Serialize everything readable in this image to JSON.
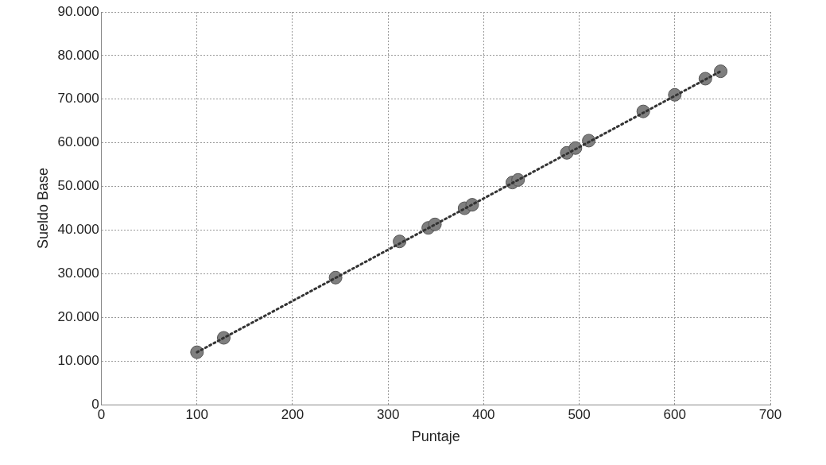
{
  "chart_data": {
    "type": "scatter",
    "xlabel": "Puntaje",
    "ylabel": "Sueldo Base",
    "xlim": [
      0,
      700
    ],
    "xticks": [
      0,
      100,
      200,
      300,
      400,
      500,
      600,
      700
    ],
    "ylim": [
      0,
      90000
    ],
    "yticks": [
      0,
      {
        "value": 10000,
        "label": "10.000"
      },
      {
        "value": 20000,
        "label": "20.000"
      },
      {
        "value": 30000,
        "label": "30.000"
      },
      {
        "value": 40000,
        "label": "40.000"
      },
      {
        "value": 50000,
        "label": "50.000"
      },
      {
        "value": 60000,
        "label": "60.000"
      },
      {
        "value": 70000,
        "label": "70.000"
      },
      {
        "value": 80000,
        "label": "80.000"
      },
      {
        "value": 90000,
        "label": "90.000"
      }
    ],
    "grid": true,
    "legend": false,
    "marker": "circle",
    "series": [
      {
        "color": "#7f7f7f",
        "x": [
          100,
          128,
          245,
          312,
          342,
          349,
          380,
          388,
          430,
          436,
          487,
          496,
          510,
          567,
          600,
          632,
          648
        ],
        "values": [
          12000,
          15300,
          29100,
          37400,
          40500,
          41300,
          45000,
          45800,
          50900,
          51500,
          57700,
          58800,
          60500,
          67200,
          71000,
          74700,
          76400
        ]
      },
      {
        "type": "line",
        "color": "#333333",
        "line_style": "dotted",
        "marker": "none",
        "x": [
          100,
          648
        ],
        "values": [
          12000,
          76400
        ]
      }
    ]
  }
}
